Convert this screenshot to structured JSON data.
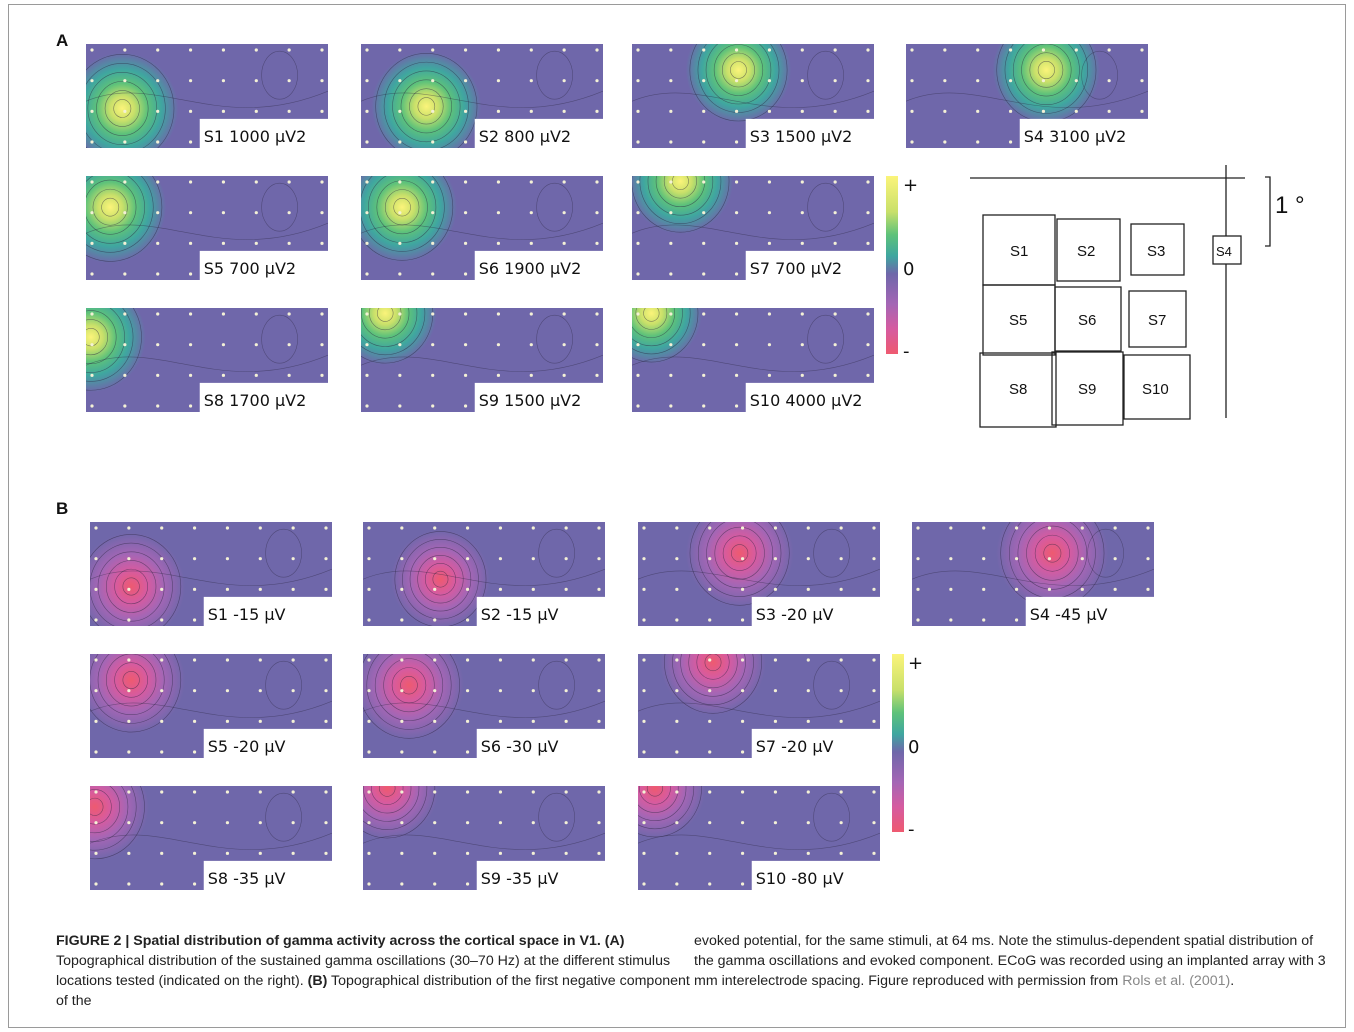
{
  "panels": {
    "A": {
      "label": "A",
      "maps": [
        {
          "label": "S1 1000 μV2",
          "hot": [
            0.15,
            0.62
          ],
          "peak": "pos",
          "strength": 1.0
        },
        {
          "label": "S2 800  μV2",
          "hot": [
            0.27,
            0.6
          ],
          "peak": "pos",
          "strength": 0.95
        },
        {
          "label": "S3 1500 μV2",
          "hot": [
            0.44,
            0.25
          ],
          "peak": "pos",
          "strength": 0.85
        },
        {
          "label": "S4 3100 μV2",
          "hot": [
            0.58,
            0.25
          ],
          "peak": "pos",
          "strength": 0.9
        },
        {
          "label": "S5 700  μV2",
          "hot": [
            0.1,
            0.3
          ],
          "peak": "pos",
          "strength": 1.0
        },
        {
          "label": "S6 1900 μV2",
          "hot": [
            0.17,
            0.3
          ],
          "peak": "pos",
          "strength": 0.95
        },
        {
          "label": "S7 700  μV2",
          "hot": [
            0.2,
            0.05
          ],
          "peak": "pos",
          "strength": 0.85
        },
        {
          "label": "S8 1700 μV2",
          "hot": [
            0.02,
            0.28
          ],
          "peak": "pos",
          "strength": 0.95
        },
        {
          "label": "S9 1500 μV2",
          "hot": [
            0.1,
            0.05
          ],
          "peak": "pos",
          "strength": 0.8
        },
        {
          "label": "S10 4000 μV2",
          "hot": [
            0.08,
            0.05
          ],
          "peak": "pos",
          "strength": 0.75
        }
      ],
      "colorbar": {
        "plus": "+",
        "zero": "0",
        "minus": "-"
      },
      "layout": {
        "degree": "1 °",
        "stimuli": [
          "S1",
          "S2",
          "S3",
          "S4",
          "S5",
          "S6",
          "S7",
          "S8",
          "S9",
          "S10"
        ]
      }
    },
    "B": {
      "label": "B",
      "maps": [
        {
          "label": "S1 -15 μV",
          "hot": [
            0.17,
            0.62
          ],
          "peak": "neg",
          "strength": 0.9
        },
        {
          "label": "S2 -15 μV",
          "hot": [
            0.32,
            0.55
          ],
          "peak": "neg",
          "strength": 0.7
        },
        {
          "label": "S3 -20 μV",
          "hot": [
            0.42,
            0.3
          ],
          "peak": "neg",
          "strength": 0.9
        },
        {
          "label": "S4 -45 μV",
          "hot": [
            0.58,
            0.3
          ],
          "peak": "neg",
          "strength": 1.0
        },
        {
          "label": "S5 -20 μV",
          "hot": [
            0.17,
            0.25
          ],
          "peak": "neg",
          "strength": 0.9
        },
        {
          "label": "S6 -30 μV",
          "hot": [
            0.19,
            0.3
          ],
          "peak": "neg",
          "strength": 0.95
        },
        {
          "label": "S7 -20 μV",
          "hot": [
            0.31,
            0.08
          ],
          "peak": "neg",
          "strength": 0.85
        },
        {
          "label": "S8 -35 μV",
          "hot": [
            0.02,
            0.2
          ],
          "peak": "neg",
          "strength": 0.9
        },
        {
          "label": "S9 -35 μV",
          "hot": [
            0.1,
            0.02
          ],
          "peak": "neg",
          "strength": 0.8
        },
        {
          "label": "S10 -80 μV",
          "hot": [
            0.07,
            0.02
          ],
          "peak": "neg",
          "strength": 0.75
        }
      ],
      "colorbar": {
        "plus": "+",
        "zero": "0",
        "minus": "-"
      }
    }
  },
  "colors": {
    "background_map": "#6f67aa",
    "positive_scale": [
      "#6f67aa",
      "#3fa6a0",
      "#5ec27a",
      "#c9e06a",
      "#fbf47a"
    ],
    "negative_scale": [
      "#6f67aa",
      "#a466b5",
      "#d65ba0",
      "#ee5a70"
    ]
  },
  "caption": {
    "title": "FIGURE 2 | Spatial distribution of gamma activity across the cortical space in V1.",
    "a_tag": "(A)",
    "a_text": "Topographical distribution of the sustained gamma oscillations (30–70 Hz) at the different stimulus locations tested (indicated on the right).",
    "b_tag": "(B)",
    "b_text": "Topographical distribution of the first negative component of the",
    "right_text": "evoked potential, for the same stimuli, at 64 ms. Note the stimulus-dependent spatial distribution of the gamma oscillations and evoked component. ECoG was recorded using an implanted array with 3 mm interelectrode spacing. Figure reproduced with permission from",
    "ref": "Rols et al. (2001)",
    "end": "."
  }
}
